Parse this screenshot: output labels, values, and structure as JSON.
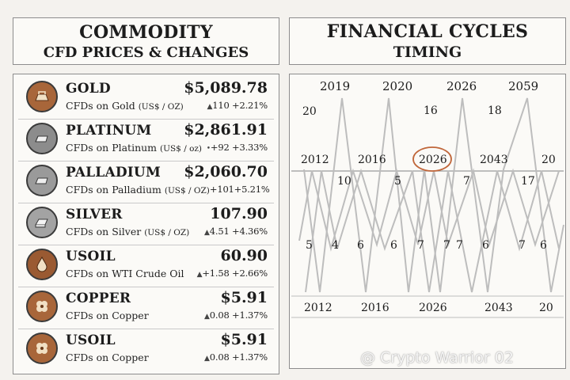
{
  "left_header": {
    "line1": "COMMODITY",
    "line2": "CFD PRICES & CHANGES"
  },
  "right_header": {
    "line1": "FINANCIAL CYCLES",
    "line2": "TIMING"
  },
  "commodities": [
    {
      "name": "GOLD",
      "price": "$5,089.78",
      "desc": "CFDs on Gold",
      "unit": "(US$ / OZ)",
      "change": "110 +2.21%",
      "icon": "gold-bar-icon"
    },
    {
      "name": "PLATINUM",
      "price": "$2,861.91",
      "desc": "CFDs on Platinum",
      "unit": "(US$ / oz)",
      "change": "+92 +3.33%",
      "icon": "platinum-bar-icon"
    },
    {
      "name": "PALLADIUM",
      "price": "$2,060.70",
      "desc": "CFDs on Palladium",
      "unit": "(US$ / OZ)",
      "change": "+101+5.21%",
      "icon": "palladium-bar-icon"
    },
    {
      "name": "SILVER",
      "price": "107.90",
      "desc": "CFDs on Silver",
      "unit": "(US$ / OZ)",
      "change": "4.51 +4.36%",
      "icon": "silver-bar-icon"
    },
    {
      "name": "USOIL",
      "price": "60.90",
      "desc": "CFDs on WTI Crude Oil",
      "unit": "",
      "change": "+1.58 +2.66%",
      "icon": "oil-drop-icon"
    },
    {
      "name": "COPPER",
      "price": "$5.91",
      "desc": "CFDs on Copper",
      "unit": "",
      "change": "0.08 +1.37%",
      "icon": "copper-clover-icon"
    },
    {
      "name": "USOIL",
      "price": "$5.91",
      "desc": "CFDs on Copper",
      "unit": "",
      "change": "0.08 +1.37%",
      "icon": "copper-clover-icon"
    }
  ],
  "cycles": {
    "top_years": [
      "2019",
      "2020",
      "2026",
      "2059"
    ],
    "top_counts": [
      "20",
      "16",
      "18"
    ],
    "mid_years": [
      "2012",
      "2016",
      "2026",
      "2043",
      "20"
    ],
    "mid_counts": [
      "10",
      "5",
      "7",
      "17"
    ],
    "low_counts": [
      "5",
      "4",
      "6",
      "6",
      "7",
      "7",
      "7",
      "6",
      "7",
      "6"
    ],
    "bottom_years": [
      "2012",
      "2016",
      "2026",
      "2043",
      "20"
    ],
    "highlight_year": "2026"
  },
  "watermark": "@ Crypto Warrior 02",
  "colors": {
    "accent_circle": "#c0663a",
    "line": "#bdbdbd",
    "badge_bronze": "#a8663a"
  }
}
